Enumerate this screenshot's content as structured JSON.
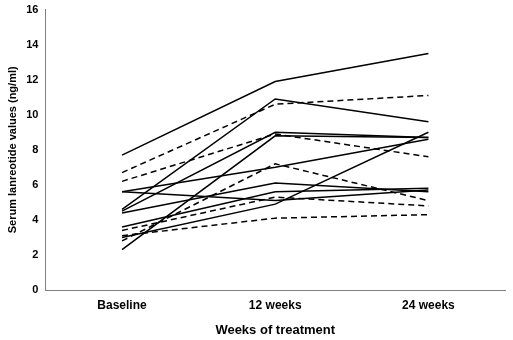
{
  "chart_data": {
    "type": "line",
    "x_label": "Weeks of treatment",
    "y_label": "Serum lanreotide values (ng/ml)",
    "categories": [
      "Baseline",
      "12 weeks",
      "24 weeks"
    ],
    "ylim": [
      0,
      16
    ],
    "yticks": [
      0,
      2,
      4,
      6,
      8,
      10,
      12,
      14,
      16
    ],
    "grid": false,
    "color": "#000000",
    "series": [
      {
        "line_style": "solid",
        "values": [
          7.7,
          11.9,
          13.5
        ]
      },
      {
        "line_style": "solid",
        "values": [
          4.6,
          10.9,
          9.6
        ]
      },
      {
        "line_style": "dashed",
        "values": [
          6.7,
          10.6,
          11.1
        ]
      },
      {
        "line_style": "dashed",
        "values": [
          6.2,
          8.9,
          7.6
        ]
      },
      {
        "line_style": "solid",
        "values": [
          4.5,
          9.0,
          8.7
        ]
      },
      {
        "line_style": "solid",
        "values": [
          2.3,
          8.8,
          8.7
        ]
      },
      {
        "line_style": "solid",
        "values": [
          5.6,
          7.0,
          8.6
        ]
      },
      {
        "line_style": "solid",
        "values": [
          3.0,
          4.9,
          9.0
        ]
      },
      {
        "line_style": "dashed",
        "values": [
          2.8,
          7.2,
          5.1
        ]
      },
      {
        "line_style": "solid",
        "values": [
          5.6,
          5.1,
          5.7
        ]
      },
      {
        "line_style": "solid",
        "values": [
          4.4,
          6.1,
          5.6
        ]
      },
      {
        "line_style": "solid",
        "values": [
          3.6,
          5.6,
          5.8
        ]
      },
      {
        "line_style": "dashed",
        "values": [
          3.4,
          5.3,
          4.8
        ]
      },
      {
        "line_style": "dashed",
        "values": [
          3.1,
          4.1,
          4.3
        ]
      }
    ]
  }
}
